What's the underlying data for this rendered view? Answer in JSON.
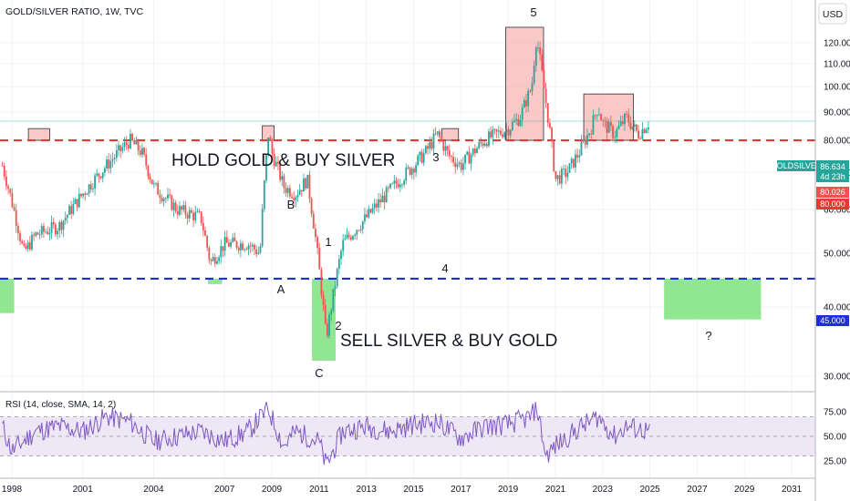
{
  "header": {
    "title": "GOLD/SILVER RATIO, 1W, TVC",
    "currency": "USD"
  },
  "price_panel": {
    "symbol_tag": "GOLDSILVER",
    "last_price": "86.634",
    "countdown": "4d 23h",
    "tag_red": "80.026",
    "tag_80": "80.000",
    "tag_45": "45.000"
  },
  "annotations": {
    "hold_text": "HOLD GOLD & BUY SILVER",
    "sell_text": "SELL SILVER & BUY GOLD",
    "question": "?",
    "waves": [
      "5",
      "3",
      "B",
      "1",
      "A",
      "4",
      "2",
      "C"
    ]
  },
  "rsi_panel": {
    "label": "RSI (14, close, SMA, 14, 2)"
  },
  "colors": {
    "up": "#26a69a",
    "down": "#ef5350",
    "red_line": "#e53935",
    "blue_line": "#1e2fd6",
    "red_box": "#f8a4a4",
    "green_box": "#7ee37e",
    "rsi_line": "#7e57c2",
    "rsi_band": "#ede7f6"
  },
  "chart_data": [
    {
      "type": "line",
      "title": "GOLD/SILVER RATIO, 1W, TVC",
      "ylabel": "USD",
      "y_scale": "log",
      "ylim": [
        25,
        135
      ],
      "y_ticks": [
        "120.000",
        "110.000",
        "100.000",
        "90.000",
        "80.000",
        "70.000",
        "60.000",
        "50.000",
        "40.000",
        "30.000"
      ],
      "x_ticks": [
        "1998",
        "2001",
        "2004",
        "2007",
        "2009",
        "2011",
        "2013",
        "2015",
        "2017",
        "2019",
        "2021",
        "2023",
        "2025",
        "2027",
        "2029",
        "2031"
      ],
      "x": [
        1997.6,
        1998.0,
        1998.5,
        1999.0,
        2000.0,
        2001.0,
        2002.0,
        2002.5,
        2003.0,
        2003.5,
        2004.0,
        2005.0,
        2006.0,
        2006.4,
        2007.0,
        2008.0,
        2008.5,
        2008.85,
        2009.0,
        2009.5,
        2010.0,
        2010.5,
        2011.0,
        2011.3,
        2011.6,
        2012.0,
        2013.0,
        2014.0,
        2015.0,
        2015.5,
        2016.0,
        2016.5,
        2017.0,
        2018.0,
        2019.0,
        2019.5,
        2020.0,
        2020.2,
        2020.5,
        2021.0,
        2021.5,
        2022.0,
        2022.5,
        2022.8,
        2023.0,
        2023.5,
        2024.0,
        2024.5,
        2025.0
      ],
      "series": [
        {
          "values": [
            72,
            62,
            50,
            54,
            56,
            64,
            72,
            76,
            80,
            76,
            66,
            60,
            58,
            48,
            52,
            52,
            50,
            82,
            76,
            66,
            64,
            68,
            47,
            35,
            42,
            52,
            58,
            65,
            72,
            76,
            82,
            75,
            72,
            80,
            84,
            88,
            100,
            123,
            100,
            68,
            70,
            76,
            84,
            92,
            86,
            82,
            88,
            82,
            86.634
          ]
        }
      ],
      "levels": [
        80,
        45
      ],
      "zones": [
        {
          "label": "sell_zone",
          "x": [
            1998.7,
            1999.6
          ],
          "y": [
            80,
            84
          ]
        },
        {
          "label": "sell_zone",
          "x": [
            2008.6,
            2009.1
          ],
          "y": [
            80,
            85
          ]
        },
        {
          "label": "sell_zone",
          "x": [
            2016.2,
            2016.9
          ],
          "y": [
            80,
            84
          ]
        },
        {
          "label": "sell_zone",
          "x": [
            2018.9,
            2020.5
          ],
          "y": [
            80,
            128
          ]
        },
        {
          "label": "sell_zone",
          "x": [
            2022.2,
            2024.3
          ],
          "y": [
            80,
            97
          ]
        },
        {
          "label": "buy_zone",
          "x": [
            1997.5,
            1998.1
          ],
          "y": [
            39,
            45
          ]
        },
        {
          "label": "buy_zone",
          "x": [
            2006.3,
            2006.9
          ],
          "y": [
            44,
            45
          ]
        },
        {
          "label": "buy_zone",
          "x": [
            2010.7,
            2011.7
          ],
          "y": [
            32,
            45
          ]
        },
        {
          "label": "buy_zone",
          "x": [
            2025.6,
            2029.7
          ],
          "y": [
            38,
            45
          ]
        }
      ]
    },
    {
      "type": "line",
      "title": "RSI (14, close, SMA, 14, 2)",
      "ylim": [
        15,
        85
      ],
      "y_ticks": [
        "75.00",
        "50.00",
        "25.00"
      ],
      "band": [
        30,
        70
      ],
      "x": [
        1997.6,
        1998.0,
        1999.0,
        2000.0,
        2001.0,
        2002.0,
        2003.0,
        2004.0,
        2005.0,
        2006.0,
        2007.0,
        2008.0,
        2008.85,
        2009.5,
        2010.0,
        2011.0,
        2011.3,
        2012.0,
        2013.0,
        2014.0,
        2015.0,
        2016.0,
        2017.0,
        2018.0,
        2019.0,
        2020.0,
        2020.2,
        2020.6,
        2021.0,
        2022.0,
        2022.8,
        2023.5,
        2024.0,
        2025.0
      ],
      "series": [
        {
          "values": [
            60,
            35,
            55,
            60,
            55,
            70,
            65,
            45,
            50,
            55,
            45,
            55,
            78,
            40,
            55,
            45,
            20,
            55,
            60,
            55,
            62,
            65,
            48,
            60,
            62,
            70,
            82,
            30,
            40,
            58,
            70,
            50,
            60,
            55
          ]
        }
      ]
    }
  ]
}
